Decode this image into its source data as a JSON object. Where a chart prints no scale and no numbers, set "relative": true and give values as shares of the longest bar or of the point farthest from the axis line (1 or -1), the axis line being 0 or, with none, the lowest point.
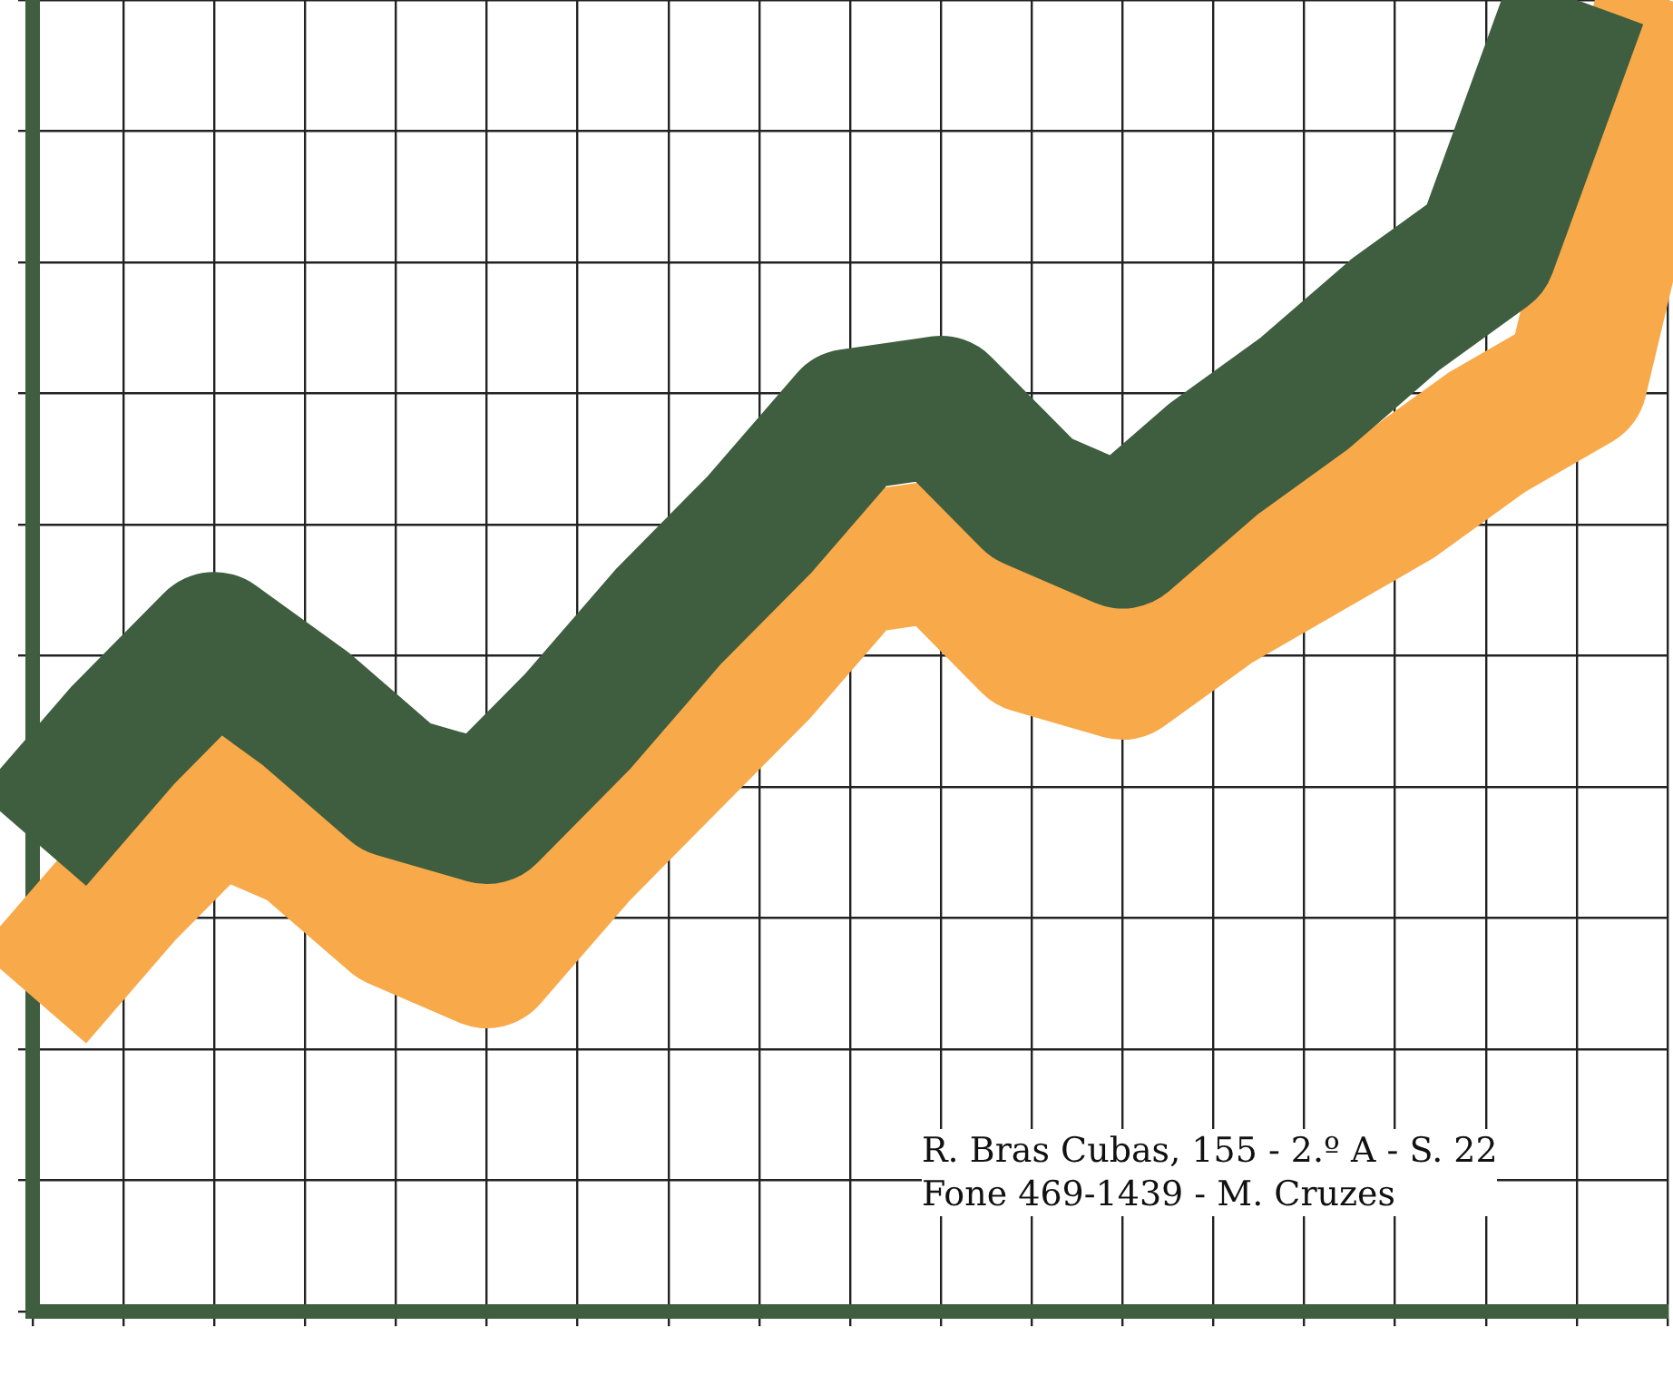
{
  "chart_data": {
    "type": "line",
    "relative": true,
    "grid": true,
    "marker": "none",
    "line_style": "solid",
    "categories": [
      null,
      null,
      null,
      null,
      null,
      null,
      null,
      null,
      null,
      null,
      null,
      null,
      null,
      null,
      null,
      null,
      null,
      null,
      null
    ],
    "series": [
      {
        "color": "#3e5e3f",
        "values": [
          0.36,
          0.44,
          0.51,
          0.46,
          0.4,
          0.38,
          0.45,
          0.53,
          0.6,
          0.68,
          0.69,
          0.62,
          0.59,
          0.65,
          0.7,
          0.76,
          0.81,
          1,
          null
        ]
      },
      {
        "color": "#f8a94a",
        "values": [
          0.24,
          0.32,
          0.39,
          0.36,
          0.3,
          0.27,
          0.35,
          0.42,
          0.49,
          0.57,
          0.58,
          0.51,
          0.49,
          0.54,
          0.58,
          0.62,
          0.67,
          0.71,
          1
        ]
      }
    ],
    "annotations": [
      "R. Bras Cubas, 155 - 2.º A - S. 22",
      "Fone 469-1439 - M. Cruzes"
    ]
  }
}
